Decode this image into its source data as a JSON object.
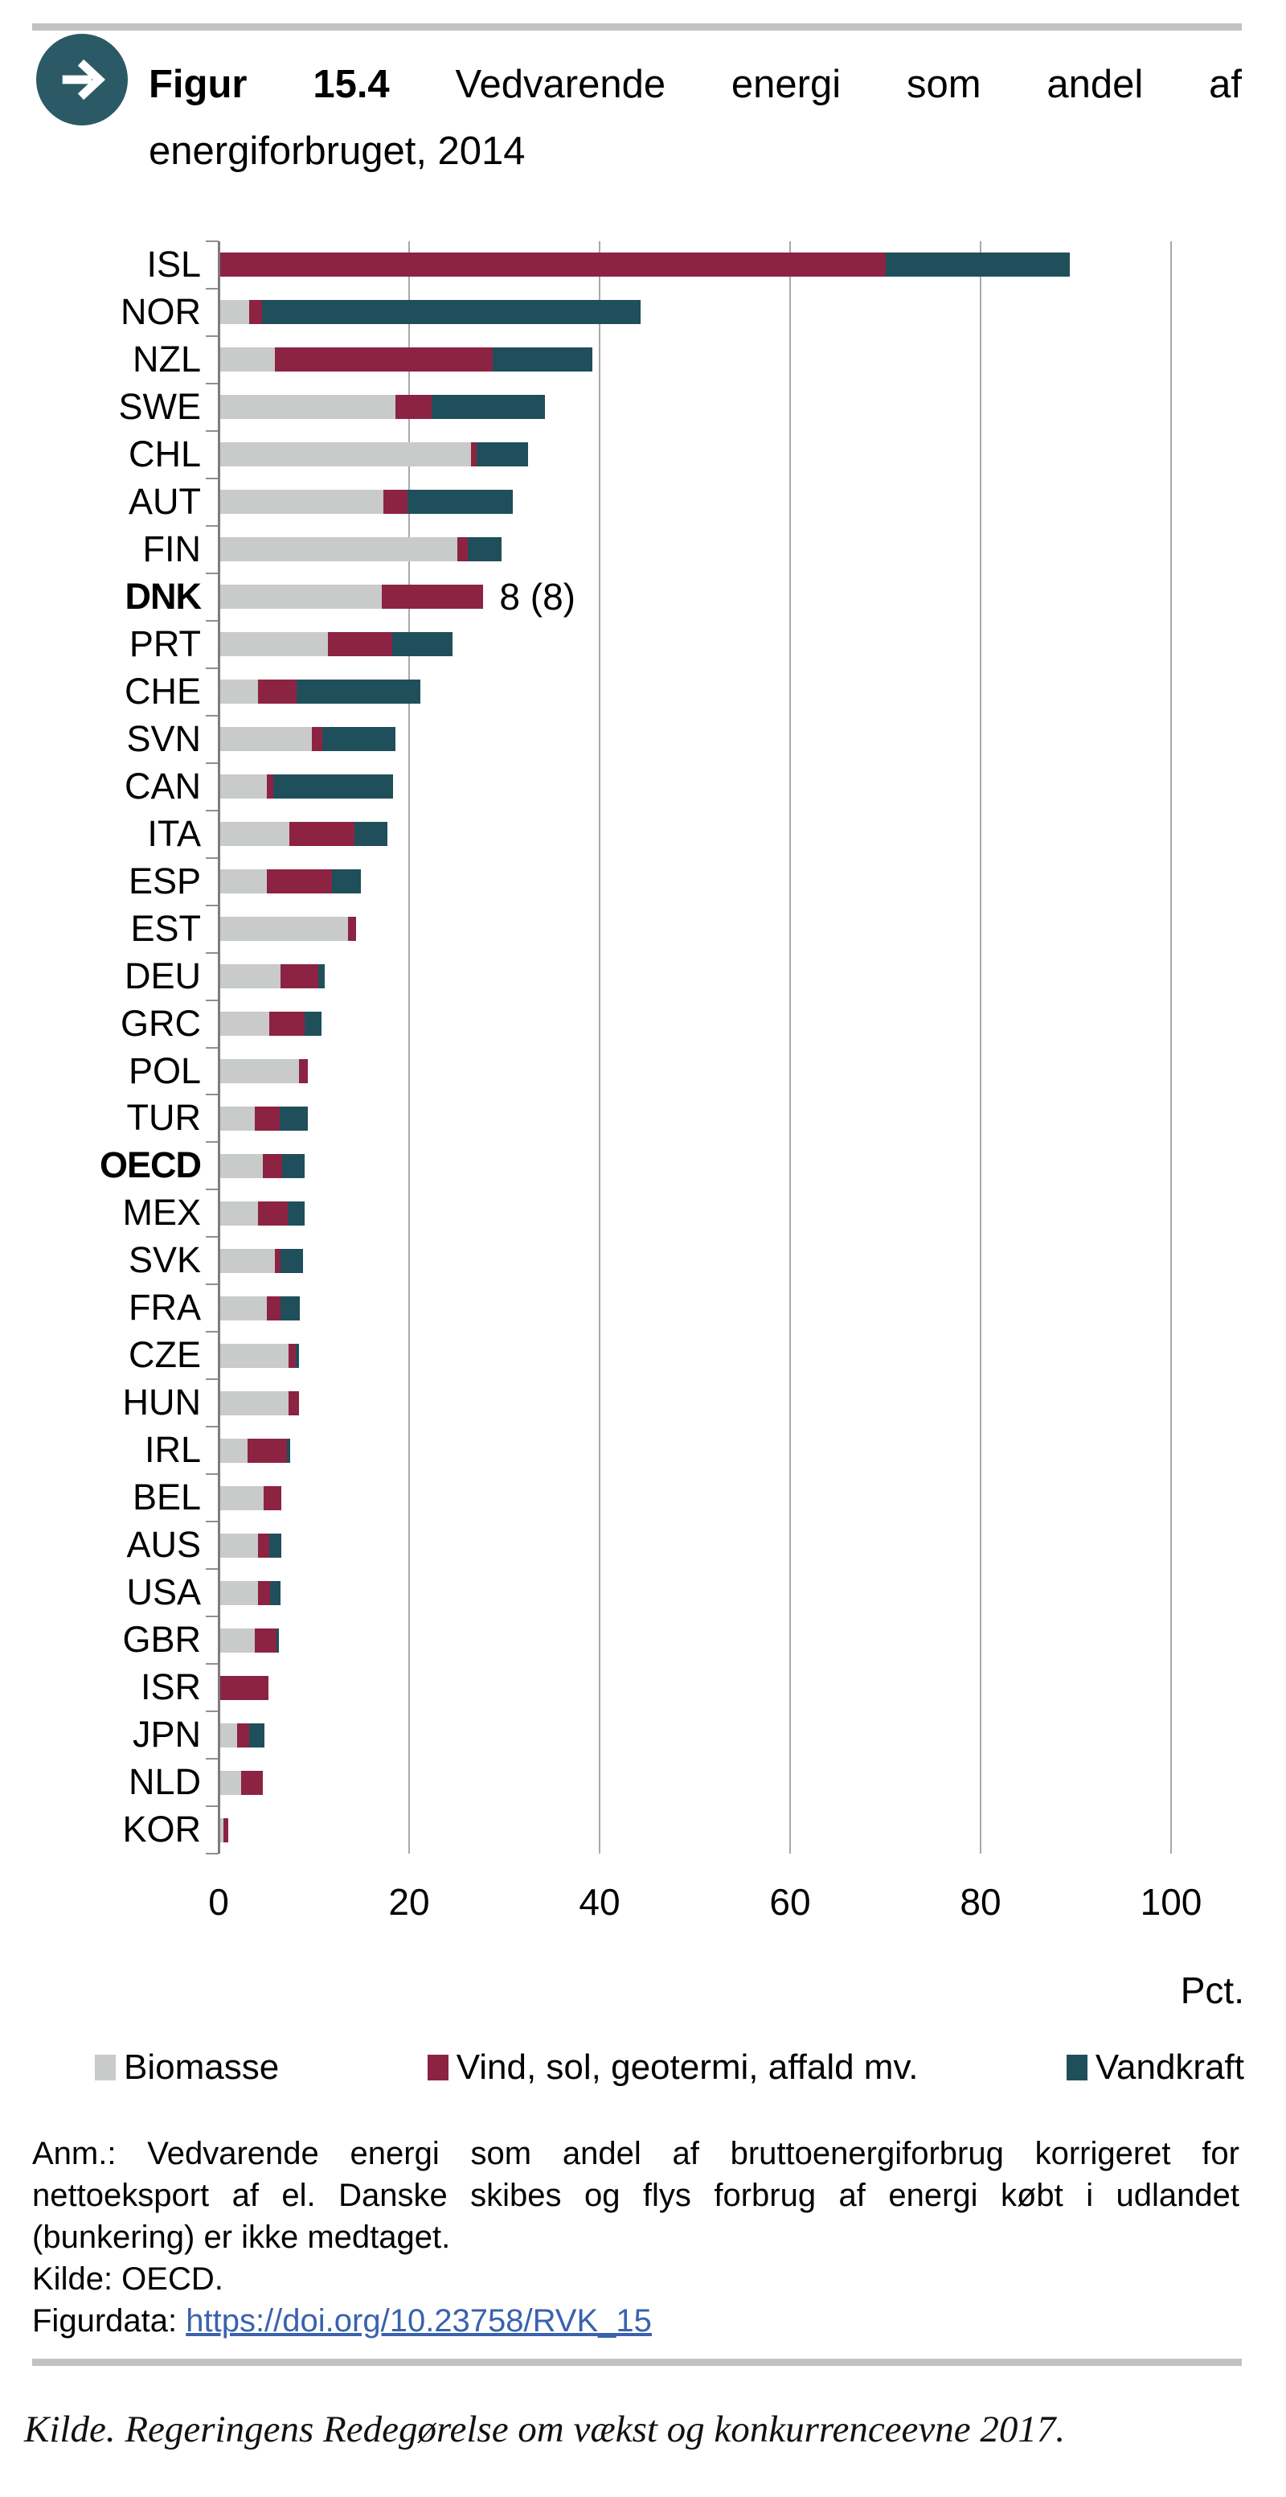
{
  "header": {
    "icon": "arrow-right-icon",
    "title_bold": "Figur 15.4",
    "title_rest_line1": "Vedvarende energi som andel af",
    "title_line2": "energiforbruget, 2014"
  },
  "chart_data": {
    "type": "bar",
    "orientation": "horizontal",
    "title": "Vedvarende energi som andel af energiforbruget, 2014",
    "xlabel": "Pct.",
    "x_ticks": [
      0,
      20,
      40,
      60,
      80,
      100
    ],
    "xlim": [
      0,
      103.5
    ],
    "grid": "vertical",
    "legend_position": "bottom",
    "series_names": [
      "Biomasse",
      "Vind, sol, geotermi, affald mv.",
      "Vandkraft"
    ],
    "colors": {
      "biomasse": "#c9caca",
      "vind": "#8d2343",
      "vandkraft": "#1f4f5b"
    },
    "rows": [
      {
        "label": "ISL",
        "bold": false,
        "values": [
          0,
          70.0,
          19.4
        ]
      },
      {
        "label": "NOR",
        "bold": false,
        "values": [
          3.2,
          1.4,
          39.7
        ]
      },
      {
        "label": "NZL",
        "bold": false,
        "values": [
          5.9,
          22.9,
          10.4
        ]
      },
      {
        "label": "SWE",
        "bold": false,
        "values": [
          18.6,
          3.8,
          11.9
        ]
      },
      {
        "label": "CHL",
        "bold": false,
        "values": [
          26.5,
          0.6,
          5.4
        ]
      },
      {
        "label": "AUT",
        "bold": false,
        "values": [
          17.3,
          2.5,
          11.1
        ]
      },
      {
        "label": "FIN",
        "bold": false,
        "values": [
          25.1,
          1.1,
          3.5
        ]
      },
      {
        "label": "DNK",
        "bold": true,
        "values": [
          17.1,
          10.7,
          0
        ],
        "annotation": "8 (8)"
      },
      {
        "label": "PRT",
        "bold": false,
        "values": [
          11.5,
          6.7,
          6.4
        ]
      },
      {
        "label": "CHE",
        "bold": false,
        "values": [
          4.1,
          4.1,
          13.0
        ]
      },
      {
        "label": "SVN",
        "bold": false,
        "values": [
          9.8,
          1.1,
          7.7
        ]
      },
      {
        "label": "CAN",
        "bold": false,
        "values": [
          5.1,
          0.6,
          12.6
        ]
      },
      {
        "label": "ITA",
        "bold": false,
        "values": [
          7.4,
          6.9,
          3.4
        ]
      },
      {
        "label": "ESP",
        "bold": false,
        "values": [
          5.1,
          6.8,
          3.0
        ]
      },
      {
        "label": "EST",
        "bold": false,
        "values": [
          13.6,
          0.8,
          0
        ]
      },
      {
        "label": "DEU",
        "bold": false,
        "values": [
          6.5,
          4.0,
          0.6
        ]
      },
      {
        "label": "GRC",
        "bold": false,
        "values": [
          5.3,
          3.7,
          1.8
        ]
      },
      {
        "label": "POL",
        "bold": false,
        "values": [
          8.4,
          1.0,
          0
        ]
      },
      {
        "label": "TUR",
        "bold": false,
        "values": [
          3.8,
          2.6,
          3.0
        ]
      },
      {
        "label": "OECD",
        "bold": true,
        "values": [
          4.6,
          2.1,
          2.3
        ]
      },
      {
        "label": "MEX",
        "bold": false,
        "values": [
          4.1,
          3.2,
          1.7
        ]
      },
      {
        "label": "SVK",
        "bold": false,
        "values": [
          5.9,
          0.6,
          2.4
        ]
      },
      {
        "label": "FRA",
        "bold": false,
        "values": [
          5.1,
          1.4,
          2.0
        ]
      },
      {
        "label": "CZE",
        "bold": false,
        "values": [
          7.3,
          0.8,
          0.3
        ]
      },
      {
        "label": "HUN",
        "bold": false,
        "values": [
          7.3,
          1.1,
          0
        ]
      },
      {
        "label": "IRL",
        "bold": false,
        "values": [
          3.0,
          4.2,
          0.3
        ]
      },
      {
        "label": "BEL",
        "bold": false,
        "values": [
          4.7,
          1.9,
          0
        ]
      },
      {
        "label": "AUS",
        "bold": false,
        "values": [
          4.1,
          1.2,
          1.3
        ]
      },
      {
        "label": "USA",
        "bold": false,
        "values": [
          4.1,
          1.3,
          1.1
        ]
      },
      {
        "label": "GBR",
        "bold": false,
        "values": [
          3.8,
          2.3,
          0.2
        ]
      },
      {
        "label": "ISR",
        "bold": false,
        "values": [
          0,
          5.2,
          0
        ]
      },
      {
        "label": "JPN",
        "bold": false,
        "values": [
          1.9,
          1.3,
          1.6
        ]
      },
      {
        "label": "NLD",
        "bold": false,
        "values": [
          2.4,
          2.2,
          0
        ]
      },
      {
        "label": "KOR",
        "bold": false,
        "values": [
          0.5,
          0.5,
          0
        ]
      }
    ]
  },
  "legend": {
    "items": [
      {
        "label": "Biomasse",
        "color": "#c9caca",
        "name": "legend-swatch-biomasse"
      },
      {
        "label": "Vind, sol, geotermi, affald mv.",
        "color": "#8d2343",
        "name": "legend-swatch-vind"
      },
      {
        "label": "Vandkraft",
        "color": "#1f4f5b",
        "name": "legend-swatch-vandkraft"
      }
    ]
  },
  "axis": {
    "unit_label": "Pct."
  },
  "notes": {
    "anm_line1": "Anm.: Vedvarende energi som andel af bruttoenergiforbrug korrigeret for",
    "anm_line2": "nettoeksport af el. Danske skibes og flys forbrug af energi købt i udlandet",
    "anm_line3": "(bunkering) er ikke medtaget.",
    "kilde": "Kilde: OECD.",
    "figurdata_label": "Figurdata: ",
    "figurdata_link": "https://doi.org/10.23758/RVK_15"
  },
  "footer": {
    "source": "Kilde. Regeringens Redegørelse om vækst og konkurrenceevne 2017."
  }
}
